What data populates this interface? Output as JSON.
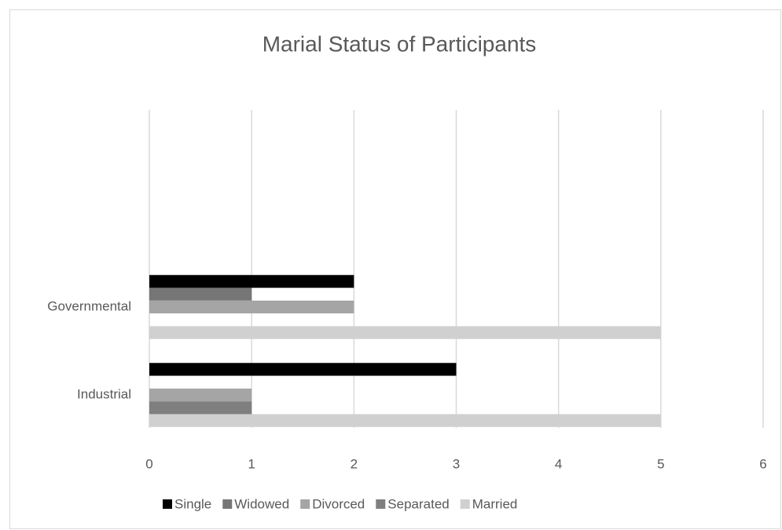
{
  "chart_data": {
    "type": "hbar",
    "title": "Marial Status of Participants",
    "categories": [
      "Industrial",
      "Governmental"
    ],
    "series": [
      {
        "name": "Single",
        "color": "#000000",
        "values": [
          3,
          2
        ]
      },
      {
        "name": "Widowed",
        "color": "#767676",
        "values": [
          0,
          1
        ]
      },
      {
        "name": "Divorced",
        "color": "#a5a5a5",
        "values": [
          1,
          2
        ]
      },
      {
        "name": "Separated",
        "color": "#7f7f7f",
        "values": [
          1,
          0
        ]
      },
      {
        "name": "Married",
        "color": "#d0d0d0",
        "values": [
          5,
          5
        ]
      }
    ],
    "xlim": [
      0,
      6
    ],
    "xticks": [
      0,
      1,
      2,
      3,
      4,
      5,
      6
    ],
    "grid": true,
    "legend": "bottom"
  }
}
